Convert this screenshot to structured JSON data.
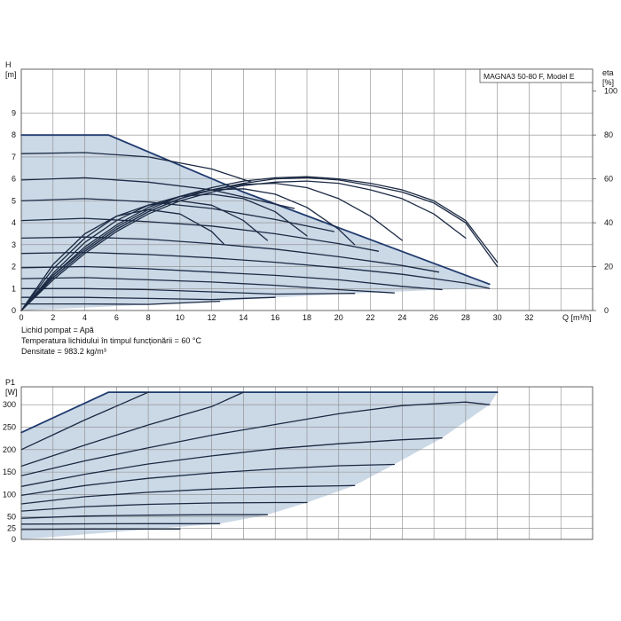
{
  "chart_data": [
    {
      "type": "line",
      "title": "MAGNA3 50-80 F, Model E",
      "ylabel": "H\n[m]",
      "y2label": "eta\n[%]",
      "xlabel": "Q [m³/h]",
      "xlim": [
        0,
        36
      ],
      "ylim": [
        0,
        11
      ],
      "y2lim": [
        0,
        110
      ],
      "x_ticks": [
        0,
        2,
        4,
        6,
        8,
        10,
        12,
        14,
        16,
        18,
        20,
        22,
        24,
        26,
        28,
        30,
        32
      ],
      "y_ticks": [
        0,
        1,
        2,
        3,
        4,
        5,
        6,
        7,
        8,
        9
      ],
      "y2_ticks": [
        0,
        20,
        40,
        60,
        80,
        100
      ],
      "grid": true,
      "colors": {
        "curve": "#1c2a44",
        "envelope": "#1f3a6e",
        "fill": "#cbd8e6",
        "grid": "#8a8a8a"
      },
      "envelope": {
        "x": [
          0,
          5.5,
          14,
          29.5,
          29.5,
          26.5,
          21,
          16,
          12.5,
          9,
          5.5,
          1.5,
          0
        ],
        "y": [
          8,
          8,
          5.4,
          1.2,
          1.0,
          0.95,
          0.78,
          0.6,
          0.42,
          0.3,
          0.18,
          0.05,
          0
        ]
      },
      "series": [
        {
          "x": [
            0,
            5.5,
            14,
            29.5
          ],
          "y": [
            8,
            8,
            5.4,
            1.2
          ]
        },
        {
          "x": [
            0,
            4,
            8,
            12,
            14.5
          ],
          "y": [
            7.15,
            7.2,
            7.0,
            6.45,
            5.85
          ]
        },
        {
          "x": [
            0,
            4,
            8,
            12,
            16,
            17.2
          ],
          "y": [
            5.95,
            6.05,
            5.85,
            5.5,
            4.85,
            4.65
          ]
        },
        {
          "x": [
            0,
            4,
            8,
            12,
            16,
            19.7
          ],
          "y": [
            5.0,
            5.1,
            4.95,
            4.65,
            4.15,
            3.6
          ]
        },
        {
          "x": [
            0,
            4,
            8,
            12,
            16,
            20,
            22.5
          ],
          "y": [
            4.1,
            4.2,
            4.05,
            3.85,
            3.5,
            3.05,
            2.7
          ]
        },
        {
          "x": [
            0,
            4,
            8,
            12,
            16,
            20,
            24,
            26.3
          ],
          "y": [
            3.3,
            3.35,
            3.25,
            3.05,
            2.8,
            2.45,
            2.05,
            1.75
          ]
        },
        {
          "x": [
            0,
            4,
            8,
            12,
            16,
            20,
            24,
            28,
            29.5
          ],
          "y": [
            2.6,
            2.65,
            2.55,
            2.4,
            2.2,
            1.95,
            1.65,
            1.25,
            1.0
          ]
        },
        {
          "x": [
            0,
            4,
            8,
            12,
            16,
            20,
            24,
            26.5
          ],
          "y": [
            1.95,
            2.0,
            1.9,
            1.75,
            1.6,
            1.4,
            1.1,
            0.95
          ]
        },
        {
          "x": [
            0,
            4,
            8,
            12,
            16,
            20,
            23.5
          ],
          "y": [
            1.45,
            1.5,
            1.4,
            1.3,
            1.15,
            0.95,
            0.8
          ]
        },
        {
          "x": [
            0,
            4,
            8,
            12,
            16,
            21
          ],
          "y": [
            1.0,
            1.0,
            0.95,
            0.85,
            0.75,
            0.78
          ]
        },
        {
          "x": [
            0,
            4,
            8,
            12,
            16
          ],
          "y": [
            0.6,
            0.6,
            0.55,
            0.5,
            0.6
          ]
        },
        {
          "x": [
            0,
            4,
            8,
            12.5
          ],
          "y": [
            0.3,
            0.3,
            0.28,
            0.42
          ]
        },
        {
          "x": [
            0,
            2,
            4,
            6,
            8,
            10,
            12,
            14,
            16,
            18,
            20,
            22,
            24,
            26,
            28,
            30
          ],
          "y2": [
            0,
            16,
            28,
            38,
            46,
            52,
            56,
            59,
            60.5,
            61,
            60,
            58,
            55,
            50,
            41,
            22
          ]
        },
        {
          "x": [
            0,
            2,
            4,
            6,
            8,
            10,
            12,
            14,
            16,
            18,
            20,
            22,
            24,
            26,
            28,
            30
          ],
          "y2": [
            0,
            15,
            27,
            37,
            45,
            51,
            55,
            58,
            60,
            60.5,
            59.5,
            57,
            54,
            49,
            40,
            20
          ]
        },
        {
          "x": [
            0,
            2,
            4,
            6,
            8,
            10,
            12,
            14,
            16,
            18,
            20,
            22,
            24,
            26,
            28
          ],
          "y2": [
            0,
            14,
            26,
            36,
            44,
            50,
            54,
            57,
            58.5,
            59,
            58,
            55,
            51,
            44,
            33
          ]
        },
        {
          "x": [
            0,
            2,
            4,
            6,
            8,
            10,
            12,
            14,
            16,
            18,
            20,
            22,
            24
          ],
          "y2": [
            0,
            15,
            27,
            37,
            45,
            51,
            55,
            57.5,
            58,
            56,
            51,
            43,
            32
          ]
        },
        {
          "x": [
            0,
            2,
            4,
            6,
            8,
            10,
            12,
            14,
            16,
            18,
            20,
            21
          ],
          "y2": [
            0,
            16,
            29,
            39,
            47,
            52,
            55,
            55.5,
            53,
            47,
            37,
            30
          ]
        },
        {
          "x": [
            0,
            2,
            4,
            6,
            8,
            10,
            12,
            14,
            16,
            18
          ],
          "y2": [
            0,
            17,
            31,
            41,
            48,
            52,
            53,
            51,
            45,
            34
          ]
        },
        {
          "x": [
            0,
            2,
            4,
            6,
            8,
            10,
            12,
            14,
            15.5
          ],
          "y2": [
            0,
            19,
            33,
            43,
            48,
            50,
            48,
            41,
            32
          ]
        },
        {
          "x": [
            0,
            2,
            4,
            6,
            8,
            10,
            12,
            12.8
          ],
          "y2": [
            0,
            21,
            35,
            43,
            46,
            44,
            36,
            30
          ]
        }
      ]
    },
    {
      "type": "line",
      "ylabel": "P1\n[W]",
      "xlim": [
        0,
        36
      ],
      "ylim": [
        0,
        340
      ],
      "y_ticks": [
        0,
        25,
        50,
        100,
        150,
        200,
        250,
        300
      ],
      "grid": true,
      "colors": {
        "curve": "#1c2a44",
        "envelope": "#1f3a6e",
        "fill": "#cbd8e6",
        "grid": "#8a8a8a"
      },
      "envelope": {
        "x": [
          0,
          5.5,
          30,
          29.5,
          26.5,
          23.5,
          21,
          18,
          15.5,
          12.5,
          0
        ],
        "y": [
          238,
          328,
          328,
          300,
          226,
          167,
          120,
          82,
          55,
          35,
          0
        ]
      },
      "series": [
        {
          "x": [
            0,
            5.5,
            30
          ],
          "y": [
            238,
            328,
            328
          ]
        },
        {
          "x": [
            0,
            2,
            4,
            6,
            8
          ],
          "y": [
            200,
            233,
            266,
            297,
            328
          ]
        },
        {
          "x": [
            0,
            4,
            8,
            12,
            14
          ],
          "y": [
            163,
            210,
            255,
            296,
            328
          ]
        },
        {
          "x": [
            0,
            4,
            8,
            12,
            16,
            20,
            24,
            28,
            29.5
          ],
          "y": [
            142,
            175,
            204,
            232,
            256,
            280,
            298,
            306,
            300
          ]
        },
        {
          "x": [
            0,
            4,
            8,
            12,
            16,
            20,
            24,
            26.5
          ],
          "y": [
            118,
            145,
            168,
            186,
            202,
            213,
            222,
            226
          ]
        },
        {
          "x": [
            0,
            4,
            8,
            12,
            16,
            20,
            23.5
          ],
          "y": [
            98,
            120,
            136,
            148,
            157,
            164,
            167
          ]
        },
        {
          "x": [
            0,
            4,
            8,
            12,
            16,
            21
          ],
          "y": [
            79,
            95,
            105,
            112,
            117,
            120
          ]
        },
        {
          "x": [
            0,
            4,
            8,
            12,
            16,
            18
          ],
          "y": [
            63,
            73,
            78,
            81,
            82,
            82
          ]
        },
        {
          "x": [
            0,
            4,
            8,
            12,
            15.5
          ],
          "y": [
            47,
            52,
            54,
            55,
            55
          ]
        },
        {
          "x": [
            0,
            4,
            8,
            12.5
          ],
          "y": [
            34,
            34.5,
            35,
            35
          ]
        },
        {
          "x": [
            0,
            4,
            8,
            10
          ],
          "y": [
            22,
            23,
            23,
            23
          ]
        }
      ]
    }
  ],
  "info_lines": [
    "Lichid pompat = Apă",
    "Temperatura lichidului în timpul funcționării = 60 °C",
    "Densitate = 983.2 kg/m³"
  ]
}
